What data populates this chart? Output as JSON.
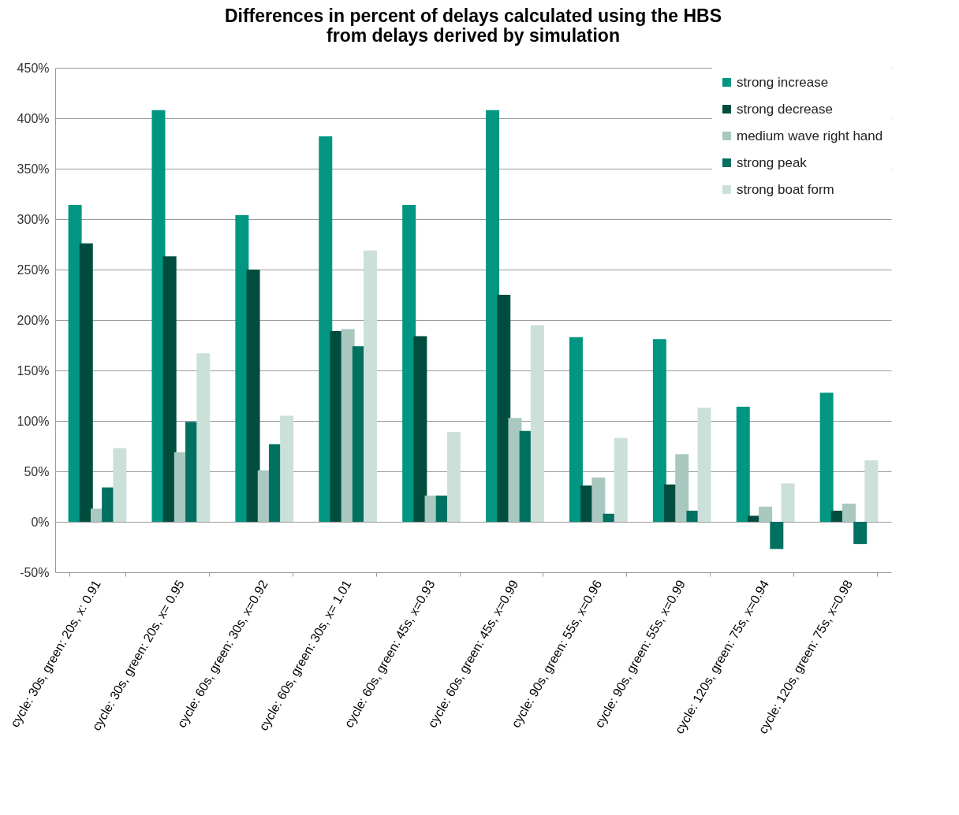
{
  "chart_data": {
    "type": "bar",
    "title": [
      "Differences in percent of delays calculated using the HBS",
      "from delays derived by simulation"
    ],
    "categories": [
      "cycle: 30s, green: 20s, x: 0.91",
      "cycle: 30s, green: 20s, x= 0.95",
      "cycle: 60s, green: 30s, x=0.92",
      "cycle: 60s, green: 30s, x= 1.01",
      "cycle: 60s, green: 45s, x=0.93",
      "cycle: 60s, green: 45s, x=0.99",
      "cycle: 90s, green: 55s, x=0.96",
      "cycle: 90s, green: 55s, x=0.99",
      "cycle: 120s, green: 75s, x=0.94",
      "cycle: 120s, green: 75s, x=0.98"
    ],
    "series": [
      {
        "name": "strong increase",
        "color": "#009682",
        "values": [
          314,
          408,
          304,
          382,
          314,
          408,
          183,
          181,
          114,
          128
        ]
      },
      {
        "name": "strong decrease",
        "color": "#004d40",
        "values": [
          276,
          263,
          250,
          189,
          184,
          225,
          36,
          37,
          6,
          11
        ]
      },
      {
        "name": "medium wave right hand",
        "color": "#a8c8c0",
        "values": [
          13,
          69,
          51,
          191,
          26,
          103,
          44,
          67,
          15,
          18
        ]
      },
      {
        "name": "strong peak",
        "color": "#007060",
        "values": [
          34,
          99,
          77,
          174,
          26,
          90,
          8,
          11,
          -27,
          -22
        ]
      },
      {
        "name": "strong boat form",
        "color": "#cce0da",
        "values": [
          73,
          167,
          105,
          269,
          89,
          195,
          83,
          113,
          38,
          61
        ]
      }
    ],
    "ylim": [
      -50,
      450
    ],
    "yticks": [
      {
        "value": -50,
        "label": "-50%"
      },
      {
        "value": 0,
        "label": "0%"
      },
      {
        "value": 50,
        "label": "50%"
      },
      {
        "value": 100,
        "label": "100%"
      },
      {
        "value": 150,
        "label": "150%"
      },
      {
        "value": 200,
        "label": "200%"
      },
      {
        "value": 250,
        "label": "250%"
      },
      {
        "value": 300,
        "label": "300%"
      },
      {
        "value": 350,
        "label": "350%"
      },
      {
        "value": 400,
        "label": "400%"
      },
      {
        "value": 450,
        "label": "450%"
      }
    ],
    "grid": "y",
    "legend": "top right"
  }
}
